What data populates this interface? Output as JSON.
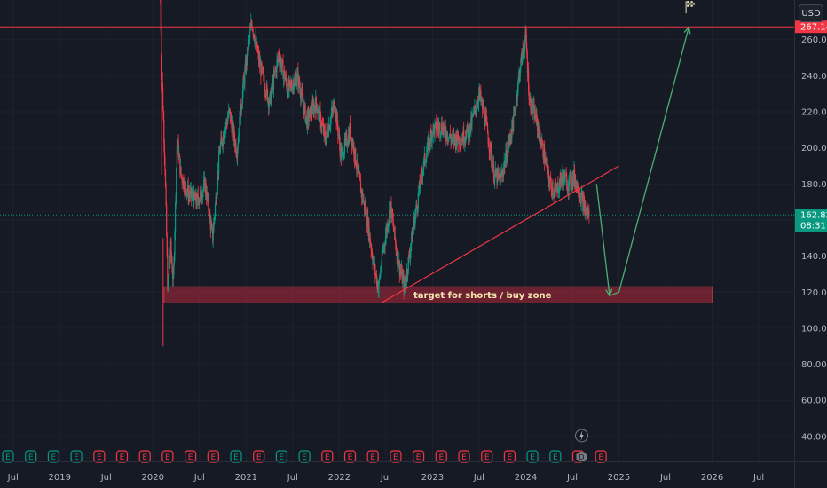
{
  "currency": "USD",
  "chart_data": {
    "type": "candlestick",
    "y_axis": {
      "ticks": [
        40,
        60,
        80,
        100,
        120,
        140,
        160,
        180,
        200,
        220,
        240,
        260
      ],
      "tick_labels": [
        "40.00",
        "60.00",
        "80.00",
        "100.00",
        "120.00",
        "140.00",
        "160.00",
        "180.00",
        "200.00",
        "220.00",
        "240.00",
        "260.00"
      ],
      "range": [
        36,
        282
      ]
    },
    "x_axis": {
      "labels": [
        "Jul",
        "2019",
        "Jul",
        "2020",
        "Jul",
        "2021",
        "Jul",
        "2022",
        "Jul",
        "2023",
        "Jul",
        "2024",
        "Jul",
        "2025",
        "Jul",
        "2026",
        "Jul"
      ],
      "range": [
        2018.36,
        2026.88
      ],
      "tick_years": [
        2018.5,
        2019.0,
        2019.5,
        2020.0,
        2020.5,
        2021.0,
        2021.5,
        2022.0,
        2022.5,
        2023.0,
        2023.5,
        2024.0,
        2024.5,
        2025.0,
        2025.5,
        2026.0,
        2026.5
      ]
    },
    "price_keypoints": [
      [
        2020.08,
        280
      ],
      [
        2020.1,
        235
      ],
      [
        2020.13,
        190
      ],
      [
        2020.16,
        120
      ],
      [
        2020.19,
        145
      ],
      [
        2020.22,
        125
      ],
      [
        2020.26,
        205
      ],
      [
        2020.3,
        185
      ],
      [
        2020.38,
        175
      ],
      [
        2020.47,
        170
      ],
      [
        2020.56,
        180
      ],
      [
        2020.64,
        150
      ],
      [
        2020.72,
        200
      ],
      [
        2020.82,
        220
      ],
      [
        2020.9,
        198
      ],
      [
        2020.97,
        235
      ],
      [
        2021.06,
        270
      ],
      [
        2021.15,
        245
      ],
      [
        2021.25,
        225
      ],
      [
        2021.35,
        252
      ],
      [
        2021.45,
        232
      ],
      [
        2021.55,
        240
      ],
      [
        2021.65,
        215
      ],
      [
        2021.75,
        225
      ],
      [
        2021.85,
        205
      ],
      [
        2021.95,
        225
      ],
      [
        2022.02,
        195
      ],
      [
        2022.12,
        210
      ],
      [
        2022.22,
        180
      ],
      [
        2022.3,
        160
      ],
      [
        2022.37,
        135
      ],
      [
        2022.42,
        122
      ],
      [
        2022.46,
        140
      ],
      [
        2022.55,
        168
      ],
      [
        2022.62,
        140
      ],
      [
        2022.7,
        122
      ],
      [
        2022.8,
        158
      ],
      [
        2022.9,
        190
      ],
      [
        2023.0,
        210
      ],
      [
        2023.1,
        212
      ],
      [
        2023.2,
        205
      ],
      [
        2023.3,
        205
      ],
      [
        2023.4,
        210
      ],
      [
        2023.5,
        230
      ],
      [
        2023.57,
        215
      ],
      [
        2023.66,
        185
      ],
      [
        2023.73,
        182
      ],
      [
        2023.8,
        198
      ],
      [
        2023.87,
        215
      ],
      [
        2023.94,
        245
      ],
      [
        2024.0,
        262
      ],
      [
        2024.04,
        226
      ],
      [
        2024.1,
        218
      ],
      [
        2024.18,
        200
      ],
      [
        2024.26,
        180
      ],
      [
        2024.32,
        175
      ],
      [
        2024.4,
        185
      ],
      [
        2024.45,
        180
      ],
      [
        2024.52,
        184
      ],
      [
        2024.58,
        175
      ],
      [
        2024.64,
        165
      ],
      [
        2024.68,
        162.8
      ]
    ],
    "events": {
      "earnings_markers": 27,
      "dividend_marker_label": "D",
      "lightning_icon": true,
      "flash_marker_year": 2024.6
    },
    "horizontal_line": {
      "value": 267.14,
      "label": "267.14",
      "color": "#f23645"
    },
    "current_price": {
      "value": 162.82,
      "label": "162.82",
      "countdown": "08:31",
      "color": "#089981"
    },
    "support_zone": {
      "low": 114,
      "high": 123,
      "x_start": 2020.12,
      "x_end": 2026.0,
      "label": "target for shorts / buy zone",
      "color": "#b2283a"
    },
    "trendline": {
      "points": [
        [
          2022.45,
          114
        ],
        [
          2025.0,
          190
        ]
      ],
      "color": "#f23645"
    },
    "projection": {
      "points": [
        [
          2024.76,
          180
        ],
        [
          2024.9,
          118
        ],
        [
          2025.0,
          120
        ],
        [
          2025.75,
          267
        ]
      ],
      "color": "#4caf72"
    },
    "target_flag": {
      "year": 2025.72,
      "value": 278,
      "icon": "checkered-flag-icon"
    },
    "colors": {
      "up": "#089981",
      "down": "#f23645",
      "background": "#161a25",
      "grid": "#1e222d"
    }
  }
}
